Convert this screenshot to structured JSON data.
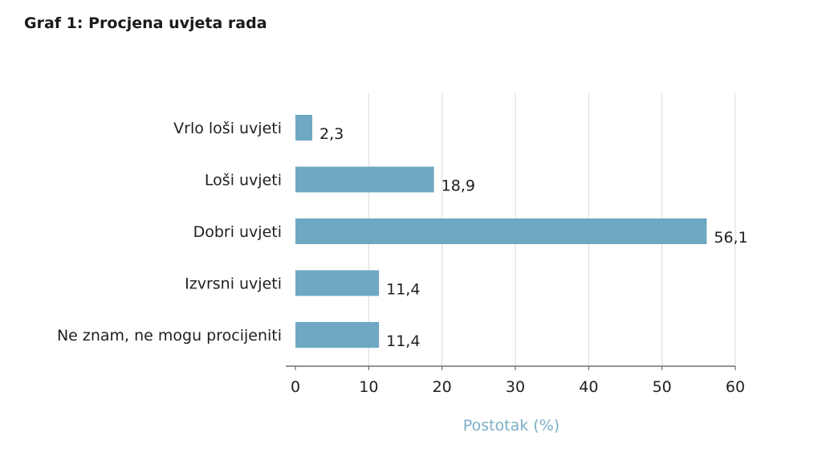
{
  "chart_data": {
    "type": "bar",
    "orientation": "horizontal",
    "title": "Graf 1: Procjena uvjeta rada",
    "categories": [
      "Vrlo loši uvjeti",
      "Loši uvjeti",
      "Dobri uvjeti",
      "Izvrsni uvjeti",
      "Ne znam, ne mogu procijeniti"
    ],
    "values": [
      2.3,
      18.9,
      56.1,
      11.4,
      11.4
    ],
    "value_labels": [
      "2,3",
      "18,9",
      "56,1",
      "11,4",
      "11,4"
    ],
    "xlabel": "Postotak (%)",
    "ylabel": "",
    "xlim": [
      0,
      60
    ],
    "xticks": [
      0,
      10,
      20,
      30,
      40,
      50,
      60
    ],
    "grid": "vertical",
    "legend": "none",
    "colors": {
      "bar": "#6fa8c2",
      "grid": "#d9d9d9",
      "axis": "#555555",
      "axis_title": "#7aaec6"
    }
  }
}
